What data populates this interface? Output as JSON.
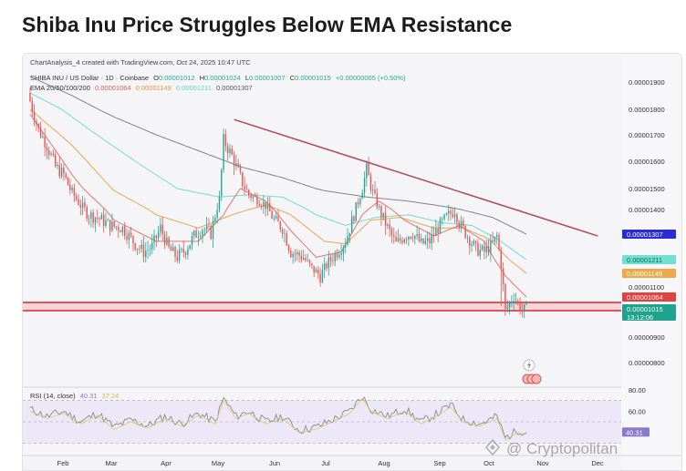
{
  "headline": "Shiba Inu Price Struggles Below EMA Resistance",
  "credit": "ChartAnalysis_4 created with TradingView.com, Oct 24, 2025 10:47 UTC",
  "symbol_line": {
    "symbol": "SHIBA INU / US Dollar · 1D · Coinbase",
    "open_label": "O",
    "open": "0.00001012",
    "high_label": "H",
    "high": "0.00001024",
    "low_label": "L",
    "low": "0.00001007",
    "close_label": "C",
    "close": "0.00001015",
    "change": "+0.00000005 (+0.50%)"
  },
  "ema_line": {
    "label": "EMA 20/50/100/200",
    "v1": "0.00001064",
    "v2": "0.00001149",
    "v3": "0.00001211",
    "v4": "0.00001307"
  },
  "rsi": {
    "label": "RSI (14, close)",
    "value": "40.31",
    "ma": "37.24",
    "badge": "40.31"
  },
  "price_badges": {
    "ema200": "0.00001307",
    "ema100": "0.00001211",
    "ema50": "0.00001149",
    "ema20": "0.00001064",
    "last": "0.00001015",
    "countdown": "13:12:06"
  },
  "watermark": "@ Cryptopolitan",
  "colors": {
    "up": "#26a69a",
    "down": "#ef5350",
    "ema20": "#e35d5d",
    "ema50": "#e39a3a",
    "ema100": "#5ed6c8",
    "ema200": "#6f6b7f",
    "trend": "#b2485a",
    "support": "#d8282f",
    "rsi": "#8a8a8a",
    "rsi_ma": "#e0c35a",
    "badge_blue": "#2b2bd1"
  },
  "chart_data": {
    "type": "candlestick",
    "title": "Shiba Inu Price Struggles Below EMA Resistance",
    "ylim": [
      7.5e-06,
      1.96e-05
    ],
    "y_ticks": [
      "0.00001900",
      "0.00001800",
      "0.00001700",
      "0.00001600",
      "0.00001500",
      "0.00001400",
      "0.00001100",
      "0.00000900",
      "0.00000800"
    ],
    "x_ticks": [
      "Feb",
      "Mar",
      "Apr",
      "May",
      "Jun",
      "Jul",
      "Aug",
      "Sep",
      "Oct",
      "Nov",
      "Dec"
    ],
    "close_path_anchors": [
      [
        0,
        1.83
      ],
      [
        4,
        1.72
      ],
      [
        8,
        1.66
      ],
      [
        12,
        1.58
      ],
      [
        16,
        1.55
      ],
      [
        20,
        1.48
      ],
      [
        24,
        1.42
      ],
      [
        28,
        1.38
      ],
      [
        32,
        1.37
      ],
      [
        38,
        1.34
      ],
      [
        44,
        1.33
      ],
      [
        50,
        1.27
      ],
      [
        54,
        1.24
      ],
      [
        58,
        1.26
      ],
      [
        62,
        1.33
      ],
      [
        66,
        1.25
      ],
      [
        70,
        1.22
      ],
      [
        74,
        1.25
      ],
      [
        78,
        1.3
      ],
      [
        82,
        1.33
      ],
      [
        86,
        1.31
      ],
      [
        90,
        1.45
      ],
      [
        92,
        1.68
      ],
      [
        96,
        1.62
      ],
      [
        100,
        1.54
      ],
      [
        104,
        1.47
      ],
      [
        108,
        1.45
      ],
      [
        112,
        1.42
      ],
      [
        116,
        1.36
      ],
      [
        120,
        1.33
      ],
      [
        124,
        1.24
      ],
      [
        130,
        1.22
      ],
      [
        134,
        1.17
      ],
      [
        138,
        1.14
      ],
      [
        142,
        1.2
      ],
      [
        146,
        1.24
      ],
      [
        150,
        1.28
      ],
      [
        154,
        1.38
      ],
      [
        158,
        1.5
      ],
      [
        160,
        1.57
      ],
      [
        162,
        1.51
      ],
      [
        166,
        1.4
      ],
      [
        170,
        1.33
      ],
      [
        174,
        1.27
      ],
      [
        178,
        1.3
      ],
      [
        182,
        1.31
      ],
      [
        186,
        1.27
      ],
      [
        190,
        1.28
      ],
      [
        194,
        1.33
      ],
      [
        198,
        1.37
      ],
      [
        202,
        1.4
      ],
      [
        204,
        1.35
      ],
      [
        208,
        1.3
      ],
      [
        212,
        1.25
      ],
      [
        216,
        1.24
      ],
      [
        220,
        1.27
      ],
      [
        222,
        1.3
      ],
      [
        224,
        1.19
      ],
      [
        226,
        1.01
      ],
      [
        230,
        1.07
      ],
      [
        234,
        1.01
      ],
      [
        236,
        1.02
      ]
    ],
    "ema20_anchors": [
      [
        0,
        1.78
      ],
      [
        20,
        1.55
      ],
      [
        40,
        1.36
      ],
      [
        60,
        1.28
      ],
      [
        80,
        1.28
      ],
      [
        92,
        1.38
      ],
      [
        100,
        1.5
      ],
      [
        112,
        1.44
      ],
      [
        124,
        1.32
      ],
      [
        136,
        1.22
      ],
      [
        148,
        1.24
      ],
      [
        158,
        1.38
      ],
      [
        166,
        1.44
      ],
      [
        178,
        1.36
      ],
      [
        192,
        1.3
      ],
      [
        204,
        1.34
      ],
      [
        216,
        1.28
      ],
      [
        226,
        1.14
      ],
      [
        236,
        1.064
      ]
    ],
    "ema50_anchors": [
      [
        0,
        1.8
      ],
      [
        20,
        1.66
      ],
      [
        40,
        1.49
      ],
      [
        60,
        1.38
      ],
      [
        80,
        1.33
      ],
      [
        96,
        1.38
      ],
      [
        112,
        1.42
      ],
      [
        124,
        1.38
      ],
      [
        140,
        1.28
      ],
      [
        150,
        1.27
      ],
      [
        162,
        1.36
      ],
      [
        176,
        1.37
      ],
      [
        192,
        1.33
      ],
      [
        206,
        1.33
      ],
      [
        218,
        1.29
      ],
      [
        228,
        1.21
      ],
      [
        236,
        1.149
      ]
    ],
    "ema100_anchors": [
      [
        0,
        1.86
      ],
      [
        15,
        1.8
      ],
      [
        30,
        1.71
      ],
      [
        50,
        1.6
      ],
      [
        70,
        1.5
      ],
      [
        90,
        1.46
      ],
      [
        104,
        1.47
      ],
      [
        120,
        1.46
      ],
      [
        136,
        1.38
      ],
      [
        150,
        1.34
      ],
      [
        164,
        1.37
      ],
      [
        180,
        1.38
      ],
      [
        196,
        1.35
      ],
      [
        210,
        1.34
      ],
      [
        222,
        1.29
      ],
      [
        236,
        1.211
      ]
    ],
    "ema200_anchors": [
      [
        0,
        1.92
      ],
      [
        20,
        1.85
      ],
      [
        40,
        1.77
      ],
      [
        60,
        1.7
      ],
      [
        80,
        1.64
      ],
      [
        100,
        1.58
      ],
      [
        120,
        1.54
      ],
      [
        140,
        1.49
      ],
      [
        160,
        1.46
      ],
      [
        180,
        1.44
      ],
      [
        200,
        1.41
      ],
      [
        220,
        1.37
      ],
      [
        236,
        1.307
      ]
    ],
    "trendline": {
      "from": [
        97,
        1.76
      ],
      "to": [
        270,
        1.3
      ]
    },
    "support_zone": [
      1.0,
      1.07
    ],
    "rsi_anchors": [
      [
        0,
        62
      ],
      [
        8,
        55
      ],
      [
        16,
        60
      ],
      [
        24,
        50
      ],
      [
        32,
        58
      ],
      [
        40,
        45
      ],
      [
        48,
        52
      ],
      [
        56,
        46
      ],
      [
        64,
        55
      ],
      [
        72,
        48
      ],
      [
        80,
        58
      ],
      [
        88,
        50
      ],
      [
        92,
        72
      ],
      [
        98,
        55
      ],
      [
        104,
        60
      ],
      [
        112,
        50
      ],
      [
        120,
        55
      ],
      [
        128,
        42
      ],
      [
        136,
        45
      ],
      [
        144,
        52
      ],
      [
        152,
        60
      ],
      [
        158,
        74
      ],
      [
        162,
        62
      ],
      [
        170,
        55
      ],
      [
        178,
        62
      ],
      [
        186,
        50
      ],
      [
        194,
        58
      ],
      [
        200,
        66
      ],
      [
        206,
        52
      ],
      [
        214,
        48
      ],
      [
        222,
        55
      ],
      [
        226,
        35
      ],
      [
        232,
        42
      ],
      [
        236,
        40.3
      ]
    ],
    "rsi_range": [
      20,
      80
    ],
    "rsi_band": [
      30,
      70
    ]
  }
}
